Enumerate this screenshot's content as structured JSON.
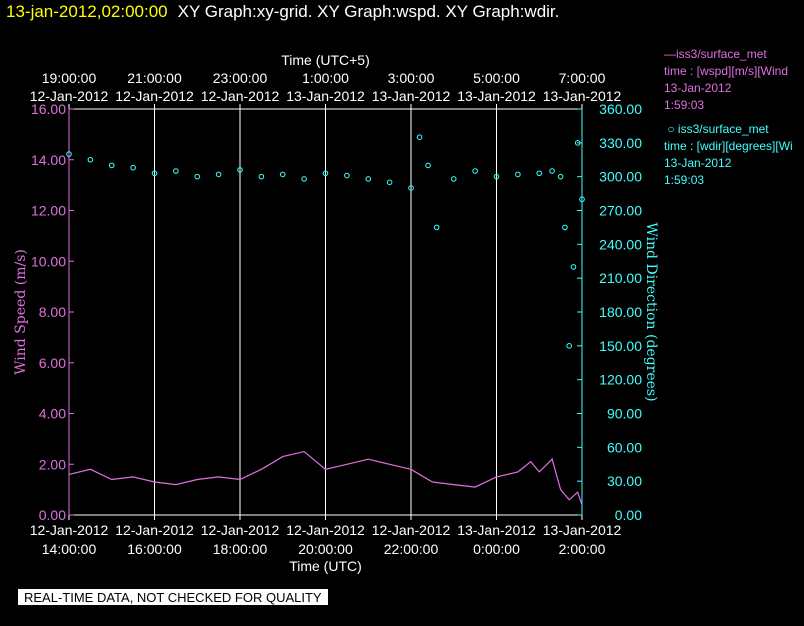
{
  "header": {
    "timestamp": "13-jan-2012,02:00:00",
    "title": "XY Graph:xy-grid.  XY Graph:wspd.  XY Graph:wdir."
  },
  "legend": {
    "wspd": {
      "name": "iss3/surface_met",
      "line1": "time : [wspd][m/s][Wind",
      "date": "13-Jan-2012",
      "time": "1:59:03",
      "color": "#e070e0"
    },
    "wdir": {
      "name": "iss3/surface_met",
      "line1": "time : [wdir][degrees][Wi",
      "date": "13-Jan-2012",
      "time": "1:59:03",
      "color": "#40ffff"
    }
  },
  "quality_banner": "REAL-TIME DATA, NOT CHECKED FOR QUALITY",
  "chart_data": {
    "type": "line+scatter",
    "top_axis": {
      "title": "Time (UTC+5)",
      "ticks": [
        {
          "time": "19:00:00",
          "date": "12-Jan-2012"
        },
        {
          "time": "21:00:00",
          "date": "12-Jan-2012"
        },
        {
          "time": "23:00:00",
          "date": "12-Jan-2012"
        },
        {
          "time": "1:00:00",
          "date": "13-Jan-2012"
        },
        {
          "time": "3:00:00",
          "date": "13-Jan-2012"
        },
        {
          "time": "5:00:00",
          "date": "13-Jan-2012"
        },
        {
          "time": "7:00:00",
          "date": "13-Jan-2012"
        }
      ]
    },
    "bottom_axis": {
      "title": "Time (UTC)",
      "ticks": [
        {
          "date": "12-Jan-2012",
          "time": "14:00:00"
        },
        {
          "date": "12-Jan-2012",
          "time": "16:00:00"
        },
        {
          "date": "12-Jan-2012",
          "time": "18:00:00"
        },
        {
          "date": "12-Jan-2012",
          "time": "20:00:00"
        },
        {
          "date": "12-Jan-2012",
          "time": "22:00:00"
        },
        {
          "date": "13-Jan-2012",
          "time": "0:00:00"
        },
        {
          "date": "13-Jan-2012",
          "time": "2:00:00"
        }
      ],
      "range_hours_utc": [
        14,
        26
      ]
    },
    "left_axis": {
      "title": "Wind Speed (m/s)",
      "ticks": [
        "0.00",
        "2.00",
        "4.00",
        "6.00",
        "8.00",
        "10.00",
        "12.00",
        "14.00",
        "16.00"
      ],
      "ylim": [
        0,
        16
      ],
      "color": "#e070e0"
    },
    "right_axis": {
      "title": "Wind Direction (degrees)",
      "ticks": [
        "0.00",
        "30.00",
        "60.00",
        "90.00",
        "120.00",
        "150.00",
        "180.00",
        "210.00",
        "240.00",
        "270.00",
        "300.00",
        "330.00",
        "360.00"
      ],
      "ylim": [
        0,
        360
      ],
      "color": "#40ffff"
    },
    "grid": "vertical lines at bottom-axis ticks",
    "series": [
      {
        "name": "iss3/surface_met wspd",
        "style": "line",
        "color": "#e070e0",
        "axis": "left",
        "x_hours_utc": [
          14.0,
          14.5,
          15.0,
          15.5,
          16.0,
          16.5,
          17.0,
          17.5,
          18.0,
          18.5,
          19.0,
          19.5,
          20.0,
          20.5,
          21.0,
          21.5,
          22.0,
          22.5,
          23.0,
          23.5,
          24.0,
          24.5,
          24.8,
          25.0,
          25.3,
          25.5,
          25.7,
          25.9,
          26.0
        ],
        "y": [
          1.6,
          1.8,
          1.4,
          1.5,
          1.3,
          1.2,
          1.4,
          1.5,
          1.4,
          1.8,
          2.3,
          2.5,
          1.8,
          2.0,
          2.2,
          2.0,
          1.8,
          1.3,
          1.2,
          1.1,
          1.5,
          1.7,
          2.1,
          1.7,
          2.2,
          1.0,
          0.6,
          0.9,
          0.4
        ]
      },
      {
        "name": "iss3/surface_met wdir",
        "style": "scatter",
        "color": "#40ffff",
        "axis": "right",
        "x_hours_utc": [
          14.0,
          14.5,
          15.0,
          15.5,
          16.0,
          16.5,
          17.0,
          17.5,
          18.0,
          18.5,
          19.0,
          19.5,
          20.0,
          20.5,
          21.0,
          21.5,
          22.0,
          22.2,
          22.4,
          22.6,
          23.0,
          23.5,
          24.0,
          24.5,
          25.0,
          25.3,
          25.5,
          25.6,
          25.7,
          25.8,
          25.9,
          26.0
        ],
        "y": [
          320,
          315,
          310,
          308,
          303,
          305,
          300,
          302,
          306,
          300,
          302,
          298,
          303,
          301,
          298,
          295,
          290,
          335,
          310,
          255,
          298,
          305,
          300,
          302,
          303,
          305,
          300,
          255,
          150,
          220,
          330,
          280
        ]
      }
    ]
  }
}
